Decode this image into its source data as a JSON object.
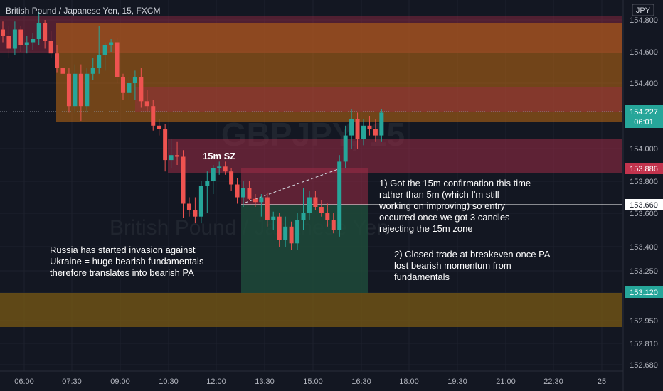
{
  "chart": {
    "title": "British Pound / Japanese Yen, 15, FXCM",
    "watermark_symbol": "GBPJPY, 15",
    "watermark_name": "British Pound / Japanese Yen",
    "currency": "JPY",
    "current_price": "154.227",
    "countdown": "06:01",
    "labels": {
      "sz_price": "153.886",
      "entry_price": "153.660",
      "target_price": "153.120"
    },
    "annotations": {
      "sz_label": "15m SZ",
      "russia": [
        "Russia has started invasion against",
        "Ukraine = huge bearish fundamentals",
        "therefore translates into bearish PA"
      ],
      "confirm": [
        "1) Got the 15m confirmation this time",
        "rather than 5m (which I'm still",
        "working on improving) so entry",
        "occurred once we got 3 candles",
        "rejecting the 15m zone"
      ],
      "breakeven": [
        "2) Closed trade at breakeven once PA",
        "lost bearish momentum from",
        "fundamentals"
      ]
    },
    "colors": {
      "up": "#26a69a",
      "down": "#ef5350",
      "background": "#131722",
      "grid": "#1e222d"
    }
  },
  "chart_data": {
    "type": "candlestick",
    "symbol": "British Pound / Japanese Yen",
    "timeframe": "15",
    "source": "FXCM",
    "x_ticks": [
      "06:00",
      "07:30",
      "09:00",
      "10:30",
      "12:00",
      "13:30",
      "15:00",
      "16:30",
      "18:00",
      "19:30",
      "21:00",
      "22:30",
      "25"
    ],
    "y_ticks": [
      154.8,
      154.6,
      154.4,
      154.0,
      153.8,
      153.6,
      153.4,
      153.25,
      153.1,
      152.95,
      152.81,
      152.68
    ],
    "y_tick_labels": [
      "154.800",
      "154.600",
      "154.400",
      "154.000",
      "153.800",
      "153.600",
      "153.400",
      "153.250",
      "153.100",
      "152.950",
      "152.810",
      "152.680"
    ],
    "ylim": [
      152.62,
      154.87
    ],
    "candles": [
      {
        "t": "06:00",
        "o": 154.74,
        "h": 154.79,
        "l": 154.66,
        "c": 154.7
      },
      {
        "t": "06:15",
        "o": 154.7,
        "h": 154.76,
        "l": 154.56,
        "c": 154.62
      },
      {
        "t": "06:30",
        "o": 154.62,
        "h": 154.79,
        "l": 154.58,
        "c": 154.74
      },
      {
        "t": "06:45",
        "o": 154.74,
        "h": 154.76,
        "l": 154.6,
        "c": 154.64
      },
      {
        "t": "07:00",
        "o": 154.64,
        "h": 154.7,
        "l": 154.59,
        "c": 154.66
      },
      {
        "t": "07:15",
        "o": 154.66,
        "h": 154.72,
        "l": 154.61,
        "c": 154.68
      },
      {
        "t": "07:30",
        "o": 154.68,
        "h": 154.85,
        "l": 154.64,
        "c": 154.78
      },
      {
        "t": "07:45",
        "o": 154.78,
        "h": 154.8,
        "l": 154.62,
        "c": 154.67
      },
      {
        "t": "08:00",
        "o": 154.67,
        "h": 154.73,
        "l": 154.56,
        "c": 154.59
      },
      {
        "t": "08:15",
        "o": 154.59,
        "h": 154.64,
        "l": 154.47,
        "c": 154.5
      },
      {
        "t": "08:30",
        "o": 154.5,
        "h": 154.54,
        "l": 154.43,
        "c": 154.46
      },
      {
        "t": "08:45",
        "o": 154.46,
        "h": 154.5,
        "l": 154.22,
        "c": 154.26
      },
      {
        "t": "09:00",
        "o": 154.26,
        "h": 154.52,
        "l": 154.22,
        "c": 154.46
      },
      {
        "t": "09:15",
        "o": 154.46,
        "h": 154.52,
        "l": 154.17,
        "c": 154.26
      },
      {
        "t": "09:30",
        "o": 154.26,
        "h": 154.5,
        "l": 154.22,
        "c": 154.46
      },
      {
        "t": "09:45",
        "o": 154.46,
        "h": 154.56,
        "l": 154.42,
        "c": 154.5
      },
      {
        "t": "10:00",
        "o": 154.5,
        "h": 154.76,
        "l": 154.46,
        "c": 154.58
      },
      {
        "t": "10:15",
        "o": 154.58,
        "h": 154.66,
        "l": 154.48,
        "c": 154.64
      },
      {
        "t": "10:30",
        "o": 154.64,
        "h": 154.68,
        "l": 154.6,
        "c": 154.66
      },
      {
        "t": "10:45",
        "o": 154.66,
        "h": 154.69,
        "l": 154.4,
        "c": 154.44
      },
      {
        "t": "11:00",
        "o": 154.44,
        "h": 154.46,
        "l": 154.3,
        "c": 154.34
      },
      {
        "t": "11:15",
        "o": 154.34,
        "h": 154.44,
        "l": 154.3,
        "c": 154.4
      },
      {
        "t": "11:30",
        "o": 154.4,
        "h": 154.48,
        "l": 154.3,
        "c": 154.44
      },
      {
        "t": "11:45",
        "o": 154.44,
        "h": 154.5,
        "l": 154.25,
        "c": 154.29
      },
      {
        "t": "12:00",
        "o": 154.29,
        "h": 154.36,
        "l": 154.23,
        "c": 154.26
      },
      {
        "t": "12:15",
        "o": 154.26,
        "h": 154.3,
        "l": 154.11,
        "c": 154.14
      },
      {
        "t": "12:30",
        "o": 154.14,
        "h": 154.18,
        "l": 154.08,
        "c": 154.12
      },
      {
        "t": "12:45",
        "o": 154.12,
        "h": 154.15,
        "l": 153.86,
        "c": 153.93
      },
      {
        "t": "13:00",
        "o": 153.93,
        "h": 154.06,
        "l": 153.88,
        "c": 153.96
      },
      {
        "t": "13:15",
        "o": 153.96,
        "h": 154.04,
        "l": 153.9,
        "c": 153.95
      },
      {
        "t": "13:30",
        "o": 153.95,
        "h": 153.99,
        "l": 153.57,
        "c": 153.66
      },
      {
        "t": "13:45",
        "o": 153.66,
        "h": 153.7,
        "l": 153.58,
        "c": 153.62
      },
      {
        "t": "14:00",
        "o": 153.62,
        "h": 153.7,
        "l": 153.54,
        "c": 153.58
      },
      {
        "t": "14:15",
        "o": 153.58,
        "h": 153.8,
        "l": 153.54,
        "c": 153.77
      },
      {
        "t": "14:30",
        "o": 153.77,
        "h": 153.86,
        "l": 153.6,
        "c": 153.8
      },
      {
        "t": "14:45",
        "o": 153.8,
        "h": 153.9,
        "l": 153.72,
        "c": 153.88
      },
      {
        "t": "15:00",
        "o": 153.88,
        "h": 153.92,
        "l": 153.84,
        "c": 153.89
      },
      {
        "t": "15:15",
        "o": 153.89,
        "h": 153.92,
        "l": 153.84,
        "c": 153.86
      },
      {
        "t": "15:30",
        "o": 153.86,
        "h": 153.88,
        "l": 153.74,
        "c": 153.78
      },
      {
        "t": "15:45",
        "o": 153.78,
        "h": 153.82,
        "l": 153.66,
        "c": 153.7
      },
      {
        "t": "16:00",
        "o": 153.7,
        "h": 153.8,
        "l": 153.64,
        "c": 153.76
      },
      {
        "t": "16:15",
        "o": 153.76,
        "h": 153.8,
        "l": 153.68,
        "c": 153.69
      },
      {
        "t": "16:30",
        "o": 153.69,
        "h": 153.72,
        "l": 153.64,
        "c": 153.67
      },
      {
        "t": "16:45",
        "o": 153.67,
        "h": 153.72,
        "l": 153.58,
        "c": 153.7
      },
      {
        "t": "17:00",
        "o": 153.7,
        "h": 153.73,
        "l": 153.52,
        "c": 153.56
      },
      {
        "t": "17:15",
        "o": 153.56,
        "h": 153.61,
        "l": 153.5,
        "c": 153.58
      },
      {
        "t": "17:30",
        "o": 153.58,
        "h": 153.6,
        "l": 153.4,
        "c": 153.44
      },
      {
        "t": "17:45",
        "o": 153.44,
        "h": 153.58,
        "l": 153.4,
        "c": 153.52
      },
      {
        "t": "18:00",
        "o": 153.52,
        "h": 153.55,
        "l": 153.38,
        "c": 153.42
      },
      {
        "t": "18:15",
        "o": 153.42,
        "h": 153.6,
        "l": 153.38,
        "c": 153.56
      },
      {
        "t": "18:30",
        "o": 153.56,
        "h": 153.76,
        "l": 153.5,
        "c": 153.6
      },
      {
        "t": "18:45",
        "o": 153.6,
        "h": 153.74,
        "l": 153.56,
        "c": 153.7
      },
      {
        "t": "19:00",
        "o": 153.7,
        "h": 153.74,
        "l": 153.62,
        "c": 153.64
      },
      {
        "t": "19:15",
        "o": 153.64,
        "h": 153.68,
        "l": 153.58,
        "c": 153.6
      },
      {
        "t": "19:30",
        "o": 153.6,
        "h": 153.66,
        "l": 153.52,
        "c": 153.56
      },
      {
        "t": "19:45",
        "o": 153.56,
        "h": 153.6,
        "l": 153.48,
        "c": 153.5
      },
      {
        "t": "20:00",
        "o": 153.5,
        "h": 153.96,
        "l": 153.46,
        "c": 153.92
      },
      {
        "t": "20:15",
        "o": 153.92,
        "h": 154.14,
        "l": 153.88,
        "c": 154.08
      },
      {
        "t": "20:30",
        "o": 154.08,
        "h": 154.24,
        "l": 154.0,
        "c": 154.18
      },
      {
        "t": "20:45",
        "o": 154.18,
        "h": 154.22,
        "l": 154.0,
        "c": 154.06
      },
      {
        "t": "21:00",
        "o": 154.06,
        "h": 154.18,
        "l": 154.02,
        "c": 154.14
      },
      {
        "t": "21:15",
        "o": 154.14,
        "h": 154.2,
        "l": 154.08,
        "c": 154.12
      },
      {
        "t": "21:30",
        "o": 154.12,
        "h": 154.18,
        "l": 154.04,
        "c": 154.08
      },
      {
        "t": "21:45",
        "o": 154.08,
        "h": 154.24,
        "l": 154.04,
        "c": 154.22
      }
    ],
    "zones": [
      {
        "name": "Supply zone (upper)",
        "from": 154.72,
        "to": 154.86
      },
      {
        "name": "Orange zone",
        "from": 154.22,
        "to": 154.77
      },
      {
        "name": "Supply zone (mid)",
        "from": 154.24,
        "to": 154.38
      },
      {
        "name": "15m SZ",
        "from": 153.886,
        "to": 154.08
      },
      {
        "name": "Support zone",
        "from": 152.93,
        "to": 153.12
      }
    ],
    "position": {
      "side": "short",
      "entry": 153.66,
      "stop": 153.886,
      "target": 153.12
    },
    "current_price": 154.227
  }
}
